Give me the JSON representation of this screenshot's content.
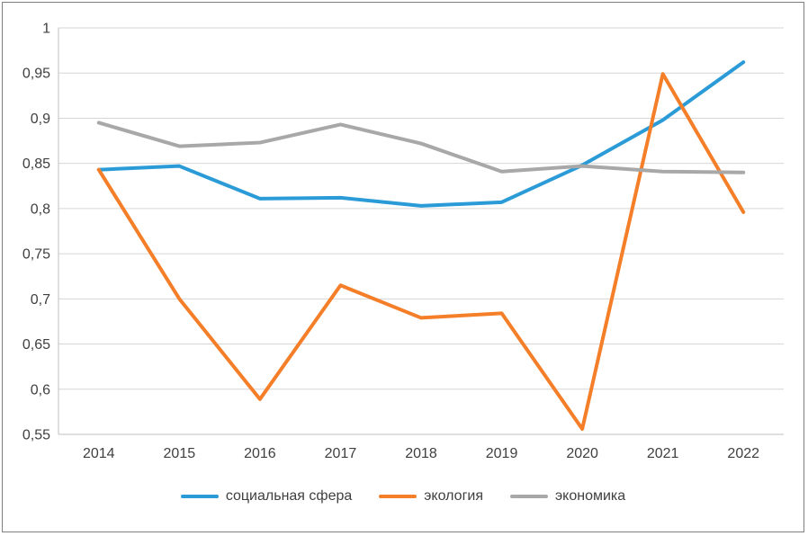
{
  "chart_data": {
    "type": "line",
    "categories": [
      "2014",
      "2015",
      "2016",
      "2017",
      "2018",
      "2019",
      "2020",
      "2021",
      "2022"
    ],
    "series": [
      {
        "name": "социальная сфера",
        "color": "#2b9bd7",
        "values": [
          0.843,
          0.847,
          0.811,
          0.812,
          0.803,
          0.807,
          0.848,
          0.898,
          0.962
        ]
      },
      {
        "name": "экология",
        "color": "#f57e29",
        "values": [
          0.843,
          0.7,
          0.589,
          0.715,
          0.679,
          0.684,
          0.556,
          0.949,
          0.796
        ]
      },
      {
        "name": "экономика",
        "color": "#a8a8a8",
        "values": [
          0.895,
          0.869,
          0.873,
          0.893,
          0.872,
          0.841,
          0.847,
          0.841,
          0.84
        ]
      }
    ],
    "title": "",
    "xlabel": "",
    "ylabel": "",
    "ylim": [
      0.55,
      1.0
    ],
    "ytick_step": 0.05,
    "ytick_labels": [
      "0,55",
      "0,6",
      "0,65",
      "0,7",
      "0,75",
      "0,8",
      "0,85",
      "0,9",
      "0,95",
      "1"
    ],
    "grid": true,
    "legend_position": "bottom",
    "grid_color": "#d6d6d6",
    "axis_color": "#bfbfbf",
    "label_color": "#3f3f3f"
  }
}
